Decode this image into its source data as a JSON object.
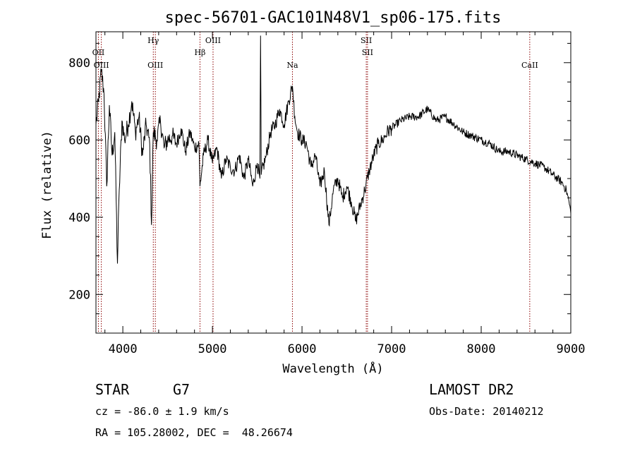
{
  "chart_data": {
    "type": "line",
    "title": "spec-56701-GAC101N48V1_sp06-175.fits",
    "xlabel": "Wavelength (Å)",
    "ylabel": "Flux (relative)",
    "xlim": [
      3700,
      9000
    ],
    "ylim": [
      100,
      880
    ],
    "x_ticks": [
      4000,
      5000,
      6000,
      7000,
      8000,
      9000
    ],
    "y_ticks": [
      200,
      400,
      600,
      800
    ],
    "grid": false,
    "line_color": "#000000",
    "marker_color": "#8b0000",
    "series": [
      {
        "x": [
          3700,
          3730,
          3760,
          3790,
          3820,
          3850,
          3880,
          3910,
          3940,
          3960,
          3990,
          4020,
          4060,
          4100,
          4140,
          4180,
          4220,
          4260,
          4300,
          4320,
          4340,
          4380,
          4420,
          4460,
          4500,
          4550,
          4600,
          4650,
          4700,
          4750,
          4800,
          4850,
          4861,
          4900,
          4950,
          5000,
          5050,
          5100,
          5150,
          5200,
          5250,
          5300,
          5350,
          5400,
          5450,
          5500,
          5530,
          5537,
          5545,
          5600,
          5650,
          5700,
          5750,
          5800,
          5850,
          5893,
          5920,
          5950,
          6000,
          6050,
          6100,
          6150,
          6200,
          6250,
          6300,
          6350,
          6400,
          6450,
          6500,
          6550,
          6600,
          6650,
          6700,
          6750,
          6800,
          6850,
          6900,
          6950,
          7000,
          7100,
          7200,
          7300,
          7400,
          7500,
          7600,
          7700,
          7800,
          7900,
          8000,
          8100,
          8200,
          8300,
          8400,
          8500,
          8600,
          8700,
          8800,
          8850,
          8900,
          8950,
          8980,
          9000
        ],
        "y": [
          640,
          700,
          780,
          720,
          480,
          690,
          560,
          620,
          280,
          470,
          650,
          600,
          640,
          700,
          620,
          660,
          560,
          640,
          590,
          380,
          620,
          600,
          650,
          580,
          600,
          610,
          590,
          630,
          570,
          620,
          580,
          590,
          480,
          560,
          600,
          540,
          580,
          500,
          550,
          530,
          520,
          560,
          500,
          550,
          480,
          540,
          500,
          870,
          510,
          560,
          620,
          640,
          680,
          640,
          700,
          740,
          660,
          620,
          600,
          590,
          530,
          560,
          480,
          520,
          380,
          470,
          500,
          450,
          480,
          440,
          390,
          430,
          470,
          520,
          560,
          590,
          600,
          620,
          630,
          650,
          660,
          660,
          680,
          650,
          660,
          640,
          620,
          610,
          600,
          590,
          570,
          570,
          560,
          550,
          540,
          530,
          510,
          500,
          490,
          470,
          440,
          410
        ]
      }
    ],
    "lines": [
      {
        "label": "OII",
        "x": 3727,
        "row": 1
      },
      {
        "label": "OIII",
        "x": 3760,
        "row": 2
      },
      {
        "label": "Hγ",
        "x": 4340,
        "row": 0
      },
      {
        "label": "OIII",
        "x": 4363,
        "row": 2
      },
      {
        "label": "Hβ",
        "x": 4861,
        "row": 1
      },
      {
        "label": "OIII",
        "x": 5007,
        "row": 0
      },
      {
        "label": "Na",
        "x": 5893,
        "row": 2
      },
      {
        "label": "SII",
        "x": 6717,
        "row": 0
      },
      {
        "label": "SII",
        "x": 6731,
        "row": 1
      },
      {
        "label": "CaII",
        "x": 8542,
        "row": 2
      }
    ]
  },
  "footer": {
    "object_class": "STAR",
    "subclass": "G7",
    "survey": "LAMOST DR2",
    "velocity": "cz = -86.0 ± 1.9 km/s",
    "obs_date": "Obs-Date: 20140212",
    "coords": "RA = 105.28002, DEC =  48.26674"
  }
}
